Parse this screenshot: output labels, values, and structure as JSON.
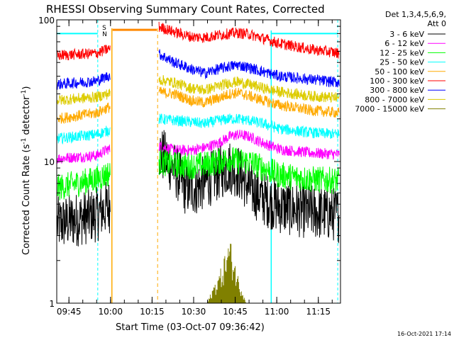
{
  "chart_data": {
    "type": "line",
    "title": "RHESSI Observing Summary Count Rates, Corrected",
    "ylabel_main": "Corrected Count Rate (s",
    "ylabel_sup1": "-1",
    "ylabel_mid": " detector",
    "ylabel_sup2": "-1",
    "ylabel_end": ")",
    "xlabel": "Start Time (03-Oct-07 09:36:42)",
    "y_scale": "log",
    "ylim": [
      1,
      100
    ],
    "xlim_minutes": [
      9.6,
      112.0
    ],
    "y_tick_labels": [
      "100",
      "10",
      "1"
    ],
    "x_ticks": [
      {
        "minute": 14,
        "label": "09:45"
      },
      {
        "minute": 29,
        "label": "10:00"
      },
      {
        "minute": 44,
        "label": "10:15"
      },
      {
        "minute": 59,
        "label": "10:30"
      },
      {
        "minute": 74,
        "label": "10:45"
      },
      {
        "minute": 89,
        "label": "11:00"
      },
      {
        "minute": 104,
        "label": "11:15"
      }
    ],
    "legend_header": [
      "Det 1,3,4,5,6,9,",
      "Att 0"
    ],
    "legend_position": "right",
    "series": [
      {
        "name": "3 - 6 keV",
        "color": "#000000",
        "pts": [
          [
            9.6,
            3.6
          ],
          [
            24,
            4.2
          ],
          [
            28,
            4.8
          ],
          [
            45,
            6
          ],
          [
            46,
            12
          ],
          [
            52,
            8.8
          ],
          [
            56,
            6.5
          ],
          [
            60,
            6.5
          ],
          [
            67,
            8
          ],
          [
            72,
            9.2
          ],
          [
            75,
            8.5
          ],
          [
            79,
            6.5
          ],
          [
            84,
            5.5
          ],
          [
            90,
            4.8
          ],
          [
            101,
            4.4
          ],
          [
            112,
            4.2
          ]
        ]
      },
      {
        "name": "6 - 12 keV",
        "color": "#ff00ff",
        "pts": [
          [
            9.6,
            10.5
          ],
          [
            24,
            11
          ],
          [
            28,
            12.2
          ],
          [
            45,
            12
          ],
          [
            46,
            13
          ],
          [
            52,
            12
          ],
          [
            58,
            12
          ],
          [
            63,
            12.5
          ],
          [
            68,
            13.5
          ],
          [
            72,
            15
          ],
          [
            75,
            15.5
          ],
          [
            79,
            15
          ],
          [
            84,
            13.5
          ],
          [
            90,
            12.2
          ],
          [
            101,
            11.5
          ],
          [
            112,
            11.2
          ]
        ]
      },
      {
        "name": "12 - 25 keV",
        "color": "#00ff00",
        "pts": [
          [
            9.6,
            6.5
          ],
          [
            24,
            7.5
          ],
          [
            28,
            8.2
          ],
          [
            45,
            7
          ],
          [
            46,
            10
          ],
          [
            52,
            9.5
          ],
          [
            58,
            9.3
          ],
          [
            63,
            9.5
          ],
          [
            68,
            10
          ],
          [
            72,
            10.5
          ],
          [
            75,
            10
          ],
          [
            79,
            10
          ],
          [
            84,
            9
          ],
          [
            90,
            8
          ],
          [
            101,
            7.5
          ],
          [
            112,
            7.3
          ]
        ]
      },
      {
        "name": "25 - 50 keV",
        "color": "#00ffff",
        "pts": [
          [
            9.6,
            14.5
          ],
          [
            24,
            15.5
          ],
          [
            28,
            16.5
          ],
          [
            45,
            17
          ],
          [
            46,
            20
          ],
          [
            52,
            19.5
          ],
          [
            58,
            19
          ],
          [
            63,
            18.5
          ],
          [
            68,
            19.5
          ],
          [
            72,
            20
          ],
          [
            75,
            20
          ],
          [
            79,
            19.5
          ],
          [
            84,
            18.5
          ],
          [
            90,
            17
          ],
          [
            101,
            16
          ],
          [
            112,
            15.5
          ]
        ]
      },
      {
        "name": "50 - 100 keV",
        "color": "#ffaa00",
        "pts": [
          [
            9.6,
            20
          ],
          [
            24,
            22
          ],
          [
            28,
            24
          ],
          [
            45,
            26
          ],
          [
            46,
            31
          ],
          [
            52,
            30
          ],
          [
            58,
            27
          ],
          [
            63,
            26
          ],
          [
            68,
            28
          ],
          [
            72,
            30
          ],
          [
            75,
            30.5
          ],
          [
            79,
            29
          ],
          [
            84,
            27
          ],
          [
            90,
            25
          ],
          [
            101,
            23
          ],
          [
            112,
            22
          ]
        ]
      },
      {
        "name": "100 - 300 keV",
        "color": "#ff0000",
        "pts": [
          [
            9.6,
            56
          ],
          [
            24,
            58
          ],
          [
            28,
            62
          ],
          [
            45,
            80
          ],
          [
            46,
            90
          ],
          [
            52,
            82
          ],
          [
            58,
            76
          ],
          [
            63,
            75
          ],
          [
            68,
            78
          ],
          [
            72,
            80
          ],
          [
            75,
            81
          ],
          [
            79,
            79
          ],
          [
            84,
            74
          ],
          [
            90,
            68
          ],
          [
            101,
            62
          ],
          [
            112,
            58
          ]
        ]
      },
      {
        "name": "300 - 800 keV",
        "color": "#0000ff",
        "pts": [
          [
            9.6,
            35
          ],
          [
            24,
            37
          ],
          [
            28,
            40
          ],
          [
            45,
            52
          ],
          [
            46,
            58
          ],
          [
            52,
            50
          ],
          [
            58,
            45
          ],
          [
            63,
            42
          ],
          [
            68,
            45
          ],
          [
            72,
            47
          ],
          [
            75,
            48
          ],
          [
            79,
            46
          ],
          [
            84,
            43
          ],
          [
            90,
            40
          ],
          [
            101,
            38
          ],
          [
            112,
            36
          ]
        ]
      },
      {
        "name": "800 - 7000 keV",
        "color": "#ddcc00",
        "pts": [
          [
            9.6,
            27
          ],
          [
            24,
            28.5
          ],
          [
            28,
            30
          ],
          [
            45,
            34
          ],
          [
            46,
            38
          ],
          [
            52,
            36
          ],
          [
            58,
            33
          ],
          [
            63,
            32
          ],
          [
            68,
            34
          ],
          [
            72,
            36
          ],
          [
            75,
            36.5
          ],
          [
            79,
            35
          ],
          [
            84,
            33
          ],
          [
            90,
            31
          ],
          [
            101,
            29
          ],
          [
            112,
            28
          ]
        ]
      },
      {
        "name": "7000 - 15000 keV",
        "color": "#808000",
        "pts": [
          [
            64,
            1.0
          ],
          [
            69,
            1.8
          ],
          [
            72,
            2.9
          ],
          [
            75,
            1.6
          ],
          [
            78,
            1.0
          ]
        ]
      }
    ],
    "flag_labels": [
      {
        "text": "S",
        "color": "#ffaa00"
      },
      {
        "text": "N",
        "color": "#00ffff"
      }
    ],
    "saa_level": 80,
    "footer_date": "16-Oct-2021 17:14"
  }
}
